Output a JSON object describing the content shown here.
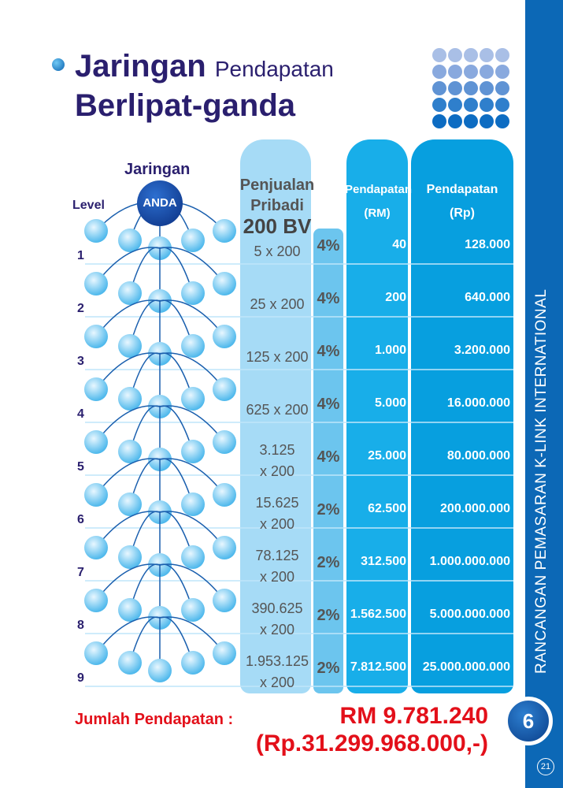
{
  "title": {
    "bold": "Jaringan",
    "light": "Pendapatan",
    "line2": "Berlipat-ganda"
  },
  "network": {
    "title": "Jaringan",
    "center": "ANDA",
    "level_label": "Level"
  },
  "headers": {
    "sales": [
      "Penjualan",
      "Pribadi",
      "200 BV"
    ],
    "rm": [
      "Pendapatan",
      "(RM)"
    ],
    "rp": [
      "Pendapatan",
      "(Rp)"
    ]
  },
  "rows": [
    {
      "level": "1",
      "sales": [
        "5 x 200"
      ],
      "pct": "4%",
      "rm": "40",
      "rp": "128.000"
    },
    {
      "level": "2",
      "sales": [
        "25 x 200"
      ],
      "pct": "4%",
      "rm": "200",
      "rp": "640.000"
    },
    {
      "level": "3",
      "sales": [
        "125 x 200"
      ],
      "pct": "4%",
      "rm": "1.000",
      "rp": "3.200.000"
    },
    {
      "level": "4",
      "sales": [
        "625 x 200"
      ],
      "pct": "4%",
      "rm": "5.000",
      "rp": "16.000.000"
    },
    {
      "level": "5",
      "sales": [
        "3.125",
        "x 200"
      ],
      "pct": "4%",
      "rm": "25.000",
      "rp": "80.000.000"
    },
    {
      "level": "6",
      "sales": [
        "15.625",
        "x 200"
      ],
      "pct": "2%",
      "rm": "62.500",
      "rp": "200.000.000"
    },
    {
      "level": "7",
      "sales": [
        "78.125",
        "x 200"
      ],
      "pct": "2%",
      "rm": "312.500",
      "rp": "1.000.000.000"
    },
    {
      "level": "8",
      "sales": [
        "390.625",
        "x 200"
      ],
      "pct": "2%",
      "rm": "1.562.500",
      "rp": "5.000.000.000"
    },
    {
      "level": "9",
      "sales": [
        "1.953.125",
        "x 200"
      ],
      "pct": "2%",
      "rm": "7.812.500",
      "rp": "25.000.000.000"
    }
  ],
  "total": {
    "label": "Jumlah Pendapatan :",
    "rm": "RM 9.781.240",
    "rp": "(Rp.31.299.968.000,-)"
  },
  "sidebar": {
    "text": "RANCANGAN PEMASARAN K-LINK INTERNATIONAL",
    "chapter": "6",
    "page": "21"
  }
}
